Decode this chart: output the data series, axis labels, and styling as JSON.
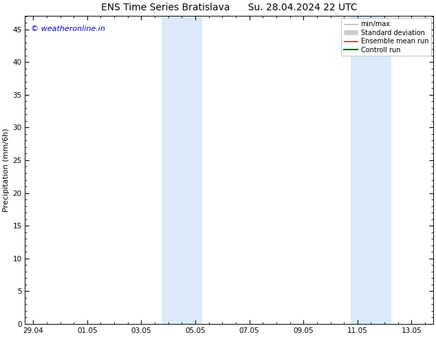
{
  "title_left": "ENS Time Series Bratislava",
  "title_right": "Su. 28.04.2024 22 UTC",
  "ylabel": "Precipitation (mm/6h)",
  "ylim": [
    0,
    47
  ],
  "yticks": [
    0,
    5,
    10,
    15,
    20,
    25,
    30,
    35,
    40,
    45
  ],
  "background_color": "#ffffff",
  "plot_bg_color": "#ffffff",
  "watermark": "© weatheronline.in",
  "watermark_color": "#0000cc",
  "band_color": "#daeaf8",
  "shaded_band_coords": [
    {
      "xmin": 4.75,
      "xmax": 6.25
    },
    {
      "xmin": 11.75,
      "xmax": 13.25
    }
  ],
  "legend_items": [
    {
      "label": "min/max",
      "color": "#aaaaaa",
      "lw": 1.0
    },
    {
      "label": "Standard deviation",
      "color": "#cccccc",
      "lw": 5
    },
    {
      "label": "Ensemble mean run",
      "color": "#dd0000",
      "lw": 1.0
    },
    {
      "label": "Controll run",
      "color": "#006600",
      "lw": 1.5
    }
  ],
  "x_tick_labels": [
    "29.04",
    "01.05",
    "03.05",
    "05.05",
    "07.05",
    "09.05",
    "11.05",
    "13.05"
  ],
  "x_tick_positions": [
    0,
    2,
    4,
    6,
    8,
    10,
    12,
    14
  ],
  "xlim": [
    -0.3,
    14.8
  ],
  "tick_fontsize": 7.5,
  "ylabel_fontsize": 8,
  "title_fontsize": 10,
  "legend_fontsize": 7,
  "watermark_fontsize": 8
}
